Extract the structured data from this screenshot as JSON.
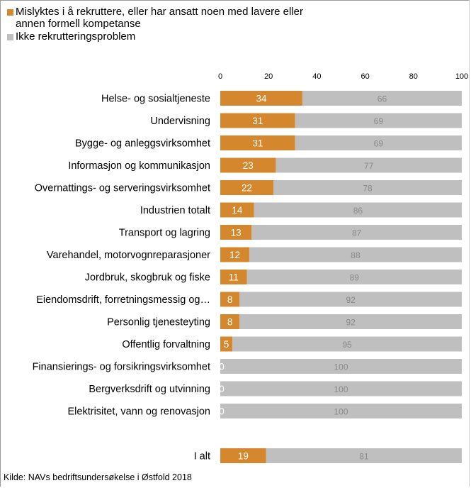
{
  "chart_data": {
    "type": "bar",
    "orientation": "horizontal",
    "stacked": true,
    "xlim": [
      0,
      100
    ],
    "x_ticks": [
      0,
      20,
      40,
      60,
      80,
      100
    ],
    "x_axis_position": "top",
    "grid": false,
    "legend_position": "top-left",
    "categories": [
      "Helse- og sosialtjeneste",
      "Undervisning",
      "Bygge- og anleggsvirksomhet",
      "Informasjon og kommunikasjon",
      "Overnattings- og serveringsvirksomhet",
      "Industrien totalt",
      "Transport og lagring",
      "Varehandel, motorvognreparasjoner",
      "Jordbruk, skogbruk og fiske",
      "Eiendomsdrift, forretningsmessig og…",
      "Personlig tjenesteyting",
      "Offentlig forvaltning",
      "Finansierings- og forsikringsvirksomhet",
      "Bergverksdrift og utvinning",
      "Elektrisitet, vann og renovasjon",
      "",
      "I alt"
    ],
    "series": [
      {
        "name": "Mislyktes i å rekruttere, eller har ansatt noen med lavere eller annen formell kompetanse",
        "color": "#D5872D",
        "label_color": "#ffffff",
        "values": [
          34,
          31,
          31,
          23,
          22,
          14,
          13,
          12,
          11,
          8,
          8,
          5,
          0,
          0,
          0,
          null,
          19
        ]
      },
      {
        "name": "Ikke rekrutteringsproblem",
        "color": "#BFBFBF",
        "label_color": "#8a8a8a",
        "values": [
          66,
          69,
          69,
          77,
          78,
          86,
          87,
          88,
          89,
          92,
          92,
          95,
          100,
          100,
          100,
          null,
          81
        ]
      }
    ]
  },
  "source_note": "Kilde: NAVs bedriftsundersøkelse i Østfold 2018"
}
